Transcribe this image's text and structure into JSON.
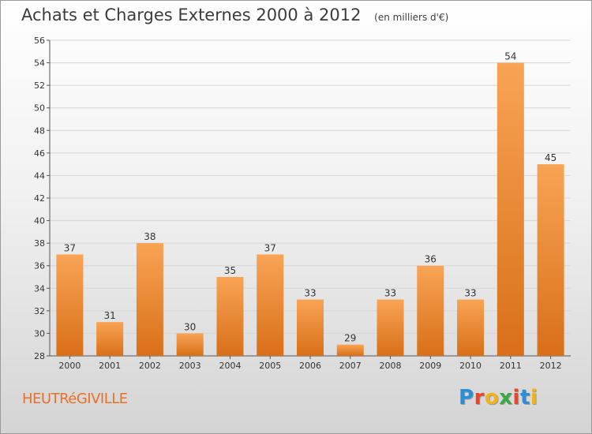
{
  "header": {
    "title": "Achats et Charges Externes 2000 à 2012",
    "unit": "(en milliers d'€)"
  },
  "footer": {
    "place": "HEUTRéGIVILLE",
    "brand": "Proxiti",
    "brand_colors": [
      "#2a8fd6",
      "#e8452a",
      "#f2b21c",
      "#3aa845",
      "#e8452a",
      "#2a8fd6",
      "#f2b21c"
    ]
  },
  "colors": {
    "bar_top": "#f8a455",
    "bar_bottom": "#d96f18",
    "grid": "#d6d6d6",
    "axis": "#555555"
  },
  "chart_data": {
    "type": "bar",
    "categories": [
      "2000",
      "2001",
      "2002",
      "2003",
      "2004",
      "2005",
      "2006",
      "2007",
      "2008",
      "2009",
      "2010",
      "2011",
      "2012"
    ],
    "values": [
      37,
      31,
      38,
      30,
      35,
      37,
      33,
      29,
      33,
      36,
      33,
      54,
      45
    ],
    "ylim": [
      28,
      56
    ],
    "yticks": [
      28,
      30,
      32,
      34,
      36,
      38,
      40,
      42,
      44,
      46,
      48,
      50,
      52,
      54,
      56
    ],
    "grid": true,
    "data_labels": true
  }
}
